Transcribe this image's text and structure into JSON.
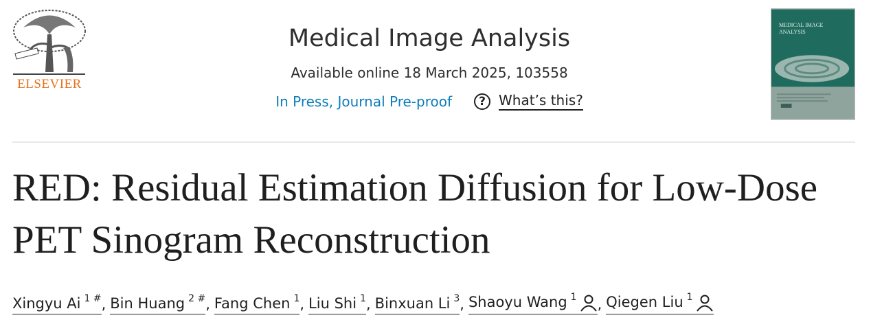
{
  "header": {
    "publisher": "ELSEVIER",
    "journal": "Medical Image Analysis",
    "availability": "Available online 18 March 2025, 103558",
    "status": "In Press, Journal Pre-proof",
    "help": {
      "icon": "?",
      "label": "What’s this?"
    },
    "cover": {
      "title": "MEDICAL IMAGE ANALYSIS"
    }
  },
  "article": {
    "title": "RED: Residual Estimation Diffusion for Low-Dose PET Sinogram Reconstruction",
    "author_separator": ",",
    "authors": [
      {
        "name": "Xingyu Ai",
        "sup": "1 #"
      },
      {
        "name": "Bin Huang",
        "sup": "2 #"
      },
      {
        "name": "Fang Chen",
        "sup": "1"
      },
      {
        "name": "Liu Shi",
        "sup": "1"
      },
      {
        "name": "Binxuan Li",
        "sup": "3"
      },
      {
        "name": "Shaoyu Wang",
        "sup": "1",
        "contact": true
      },
      {
        "name": "Qiegen Liu",
        "sup": "1",
        "contact": true
      }
    ]
  }
}
